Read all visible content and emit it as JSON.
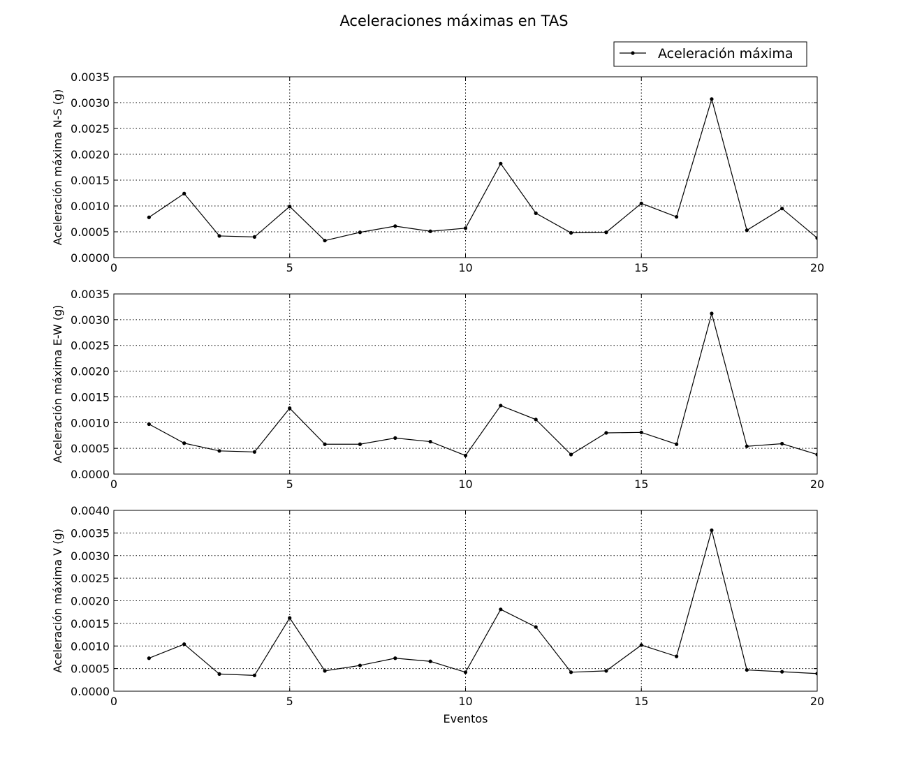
{
  "title": "Aceleraciones máximas en TAS",
  "legend": {
    "label": "Aceleración máxima",
    "placement": "top-right"
  },
  "colors": {
    "line": "#000000",
    "background": "#ffffff"
  },
  "chart_data": [
    {
      "type": "line",
      "ylabel": "Aceleración máxima N-S (g)",
      "xlabel": "",
      "xlim": [
        0,
        20
      ],
      "ylim": [
        0,
        0.0035
      ],
      "xticks": [
        "0",
        "5",
        "10",
        "15",
        "20"
      ],
      "yticks": [
        "0.0000",
        "0.0005",
        "0.0010",
        "0.0015",
        "0.0020",
        "0.0025",
        "0.0030",
        "0.0035"
      ],
      "grid": true,
      "x": [
        1,
        2,
        3,
        4,
        5,
        6,
        7,
        8,
        9,
        10,
        11,
        12,
        13,
        14,
        15,
        16,
        17,
        18,
        19,
        20
      ],
      "series": [
        {
          "name": "Aceleración máxima",
          "values": [
            0.00078,
            0.00124,
            0.00042,
            0.0004,
            0.00099,
            0.00033,
            0.00049,
            0.00061,
            0.00051,
            0.00057,
            0.00182,
            0.00086,
            0.00048,
            0.00049,
            0.00105,
            0.00079,
            0.00307,
            0.00053,
            0.00095,
            0.00038
          ]
        }
      ]
    },
    {
      "type": "line",
      "ylabel": "Aceleración máxima E-W (g)",
      "xlabel": "",
      "xlim": [
        0,
        20
      ],
      "ylim": [
        0,
        0.0035
      ],
      "xticks": [
        "0",
        "5",
        "10",
        "15",
        "20"
      ],
      "yticks": [
        "0.0000",
        "0.0005",
        "0.0010",
        "0.0015",
        "0.0020",
        "0.0025",
        "0.0030",
        "0.0035"
      ],
      "grid": true,
      "x": [
        1,
        2,
        3,
        4,
        5,
        6,
        7,
        8,
        9,
        10,
        11,
        12,
        13,
        14,
        15,
        16,
        17,
        18,
        19,
        20
      ],
      "series": [
        {
          "name": "Aceleración máxima",
          "values": [
            0.00097,
            0.0006,
            0.00045,
            0.00043,
            0.00128,
            0.00058,
            0.00058,
            0.0007,
            0.00063,
            0.00036,
            0.00133,
            0.00106,
            0.00038,
            0.0008,
            0.00081,
            0.00058,
            0.00312,
            0.00054,
            0.00059,
            0.00038
          ]
        }
      ]
    },
    {
      "type": "line",
      "ylabel": "Aceleración máxima V (g)",
      "xlabel": "Eventos",
      "xlim": [
        0,
        20
      ],
      "ylim": [
        0,
        0.004
      ],
      "xticks": [
        "0",
        "5",
        "10",
        "15",
        "20"
      ],
      "yticks": [
        "0.0000",
        "0.0005",
        "0.0010",
        "0.0015",
        "0.0020",
        "0.0025",
        "0.0030",
        "0.0035",
        "0.0040"
      ],
      "grid": true,
      "x": [
        1,
        2,
        3,
        4,
        5,
        6,
        7,
        8,
        9,
        10,
        11,
        12,
        13,
        14,
        15,
        16,
        17,
        18,
        19,
        20
      ],
      "series": [
        {
          "name": "Aceleración máxima",
          "values": [
            0.00073,
            0.00104,
            0.00038,
            0.00035,
            0.00162,
            0.00045,
            0.00057,
            0.00073,
            0.00066,
            0.00042,
            0.00181,
            0.00142,
            0.00042,
            0.00045,
            0.00102,
            0.00077,
            0.00356,
            0.00047,
            0.00043,
            0.00039
          ]
        }
      ]
    }
  ]
}
